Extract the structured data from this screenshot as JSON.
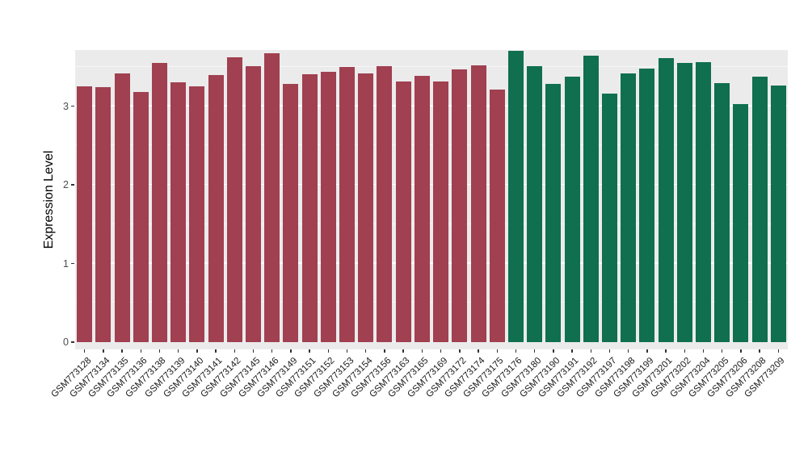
{
  "chart_data": {
    "type": "bar",
    "title": "",
    "xlabel": "",
    "ylabel": "Expression Level",
    "ylim": [
      0,
      3.7
    ],
    "yticks": [
      0,
      1,
      2,
      3
    ],
    "minor_gridlines": [
      0.5,
      1.5,
      2.5,
      3.5
    ],
    "grid": "white major and minor horizontal gridlines on gray panel",
    "legend_position": "none",
    "panel_background": "#EBEBEB",
    "group_colors": {
      "A": "#A04050",
      "B": "#0F6F4F"
    },
    "categories": [
      "GSM773128",
      "GSM773134",
      "GSM773135",
      "GSM773136",
      "GSM773138",
      "GSM773139",
      "GSM773140",
      "GSM773141",
      "GSM773142",
      "GSM773145",
      "GSM773146",
      "GSM773149",
      "GSM773151",
      "GSM773152",
      "GSM773153",
      "GSM773154",
      "GSM773156",
      "GSM773163",
      "GSM773165",
      "GSM773169",
      "GSM773172",
      "GSM773174",
      "GSM773175",
      "GSM773176",
      "GSM773180",
      "GSM773190",
      "GSM773191",
      "GSM773192",
      "GSM773197",
      "GSM773198",
      "GSM773199",
      "GSM773201",
      "GSM773202",
      "GSM773204",
      "GSM773205",
      "GSM773206",
      "GSM773208",
      "GSM773209"
    ],
    "groups": [
      "A",
      "A",
      "A",
      "A",
      "A",
      "A",
      "A",
      "A",
      "A",
      "A",
      "A",
      "A",
      "A",
      "A",
      "A",
      "A",
      "A",
      "A",
      "A",
      "A",
      "A",
      "A",
      "A",
      "B",
      "B",
      "B",
      "B",
      "B",
      "B",
      "B",
      "B",
      "B",
      "B",
      "B",
      "B",
      "B",
      "B",
      "B"
    ],
    "values": [
      3.25,
      3.24,
      3.42,
      3.18,
      3.55,
      3.3,
      3.25,
      3.39,
      3.62,
      3.51,
      3.67,
      3.28,
      3.41,
      3.44,
      3.5,
      3.42,
      3.51,
      3.31,
      3.38,
      3.31,
      3.47,
      3.52,
      3.21,
      3.7,
      3.51,
      3.28,
      3.37,
      3.64,
      3.16,
      3.42,
      3.48,
      3.61,
      3.55,
      3.56,
      3.29,
      3.03,
      3.37,
      3.26
    ]
  }
}
